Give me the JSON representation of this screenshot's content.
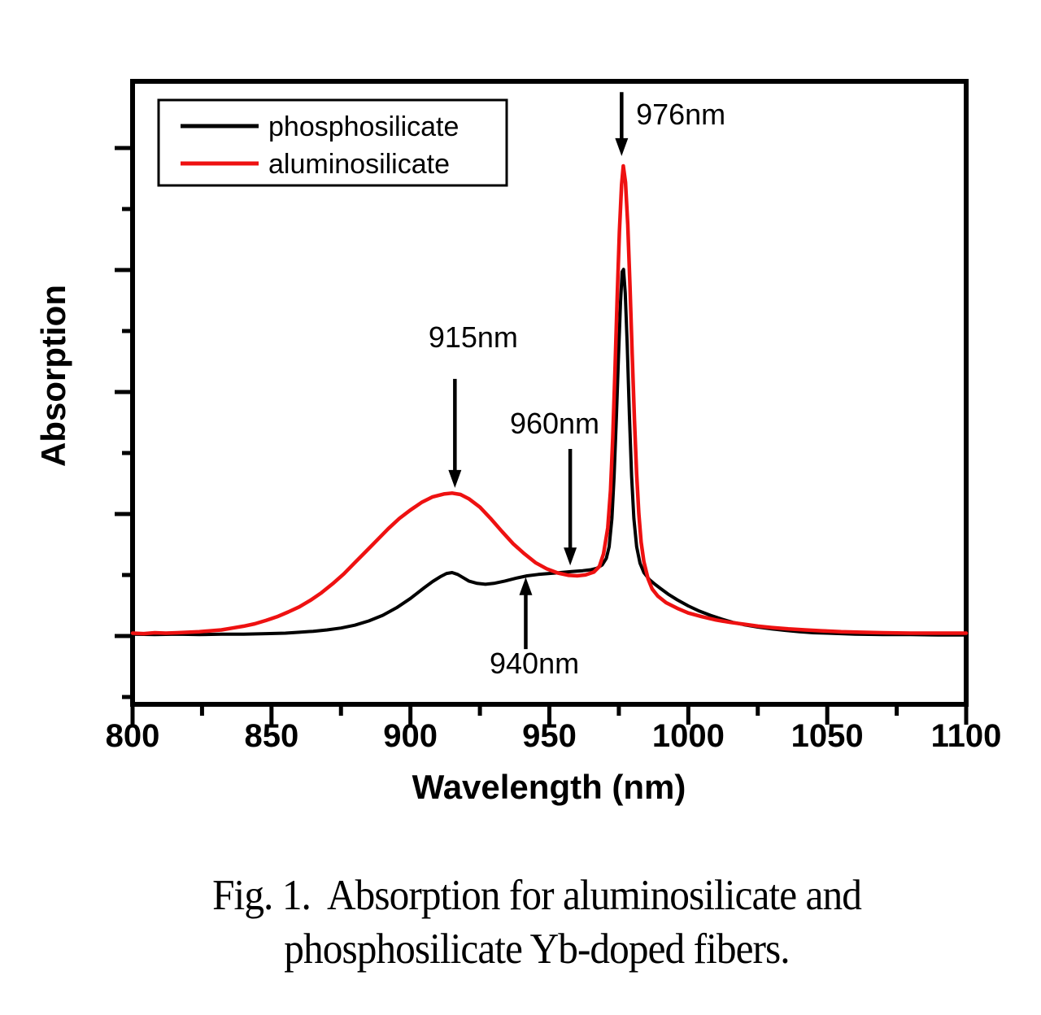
{
  "figure": {
    "caption_line1": "Fig. 1.  Absorption for aluminosilicate and",
    "caption_line2": "phosphosilicate Yb-doped fibers."
  },
  "chart_data": {
    "type": "line",
    "title": "",
    "xlabel": "Wavelength (nm)",
    "ylabel": "Absorption",
    "xlim": [
      800,
      1100
    ],
    "x_major_ticks": [
      800,
      850,
      900,
      950,
      1000,
      1050,
      1100
    ],
    "x_minor_ticks": [
      825,
      875,
      925,
      975,
      1025,
      1075
    ],
    "y_axis": {
      "tick_labels_shown": false,
      "long_ticks": 5,
      "short_ticks": 5
    },
    "ylim_au": [
      -0.13,
      1.17
    ],
    "grid": false,
    "units_note": "absorption in arbitrary units, aluminosilicate 976nm peak = 1.0",
    "legend": {
      "position": "top-left",
      "entries": [
        {
          "label": "phosphosilicate",
          "color": "#000000"
        },
        {
          "label": "aluminosilicate",
          "color": "#ee1111"
        }
      ]
    },
    "series": [
      {
        "name": "phosphosilicate",
        "color": "#000000",
        "width": 4,
        "points": [
          [
            800,
            0.004
          ],
          [
            808,
            0.003
          ],
          [
            816,
            0.004
          ],
          [
            824,
            0.003
          ],
          [
            832,
            0.004
          ],
          [
            840,
            0.004
          ],
          [
            848,
            0.005
          ],
          [
            855,
            0.006
          ],
          [
            860,
            0.008
          ],
          [
            865,
            0.01
          ],
          [
            870,
            0.013
          ],
          [
            875,
            0.017
          ],
          [
            880,
            0.023
          ],
          [
            885,
            0.032
          ],
          [
            890,
            0.044
          ],
          [
            895,
            0.06
          ],
          [
            900,
            0.08
          ],
          [
            905,
            0.103
          ],
          [
            908,
            0.116
          ],
          [
            911,
            0.127
          ],
          [
            913,
            0.133
          ],
          [
            915,
            0.135
          ],
          [
            917,
            0.131
          ],
          [
            919,
            0.124
          ],
          [
            921,
            0.117
          ],
          [
            924,
            0.112
          ],
          [
            927,
            0.11
          ],
          [
            930,
            0.112
          ],
          [
            934,
            0.117
          ],
          [
            938,
            0.123
          ],
          [
            942,
            0.128
          ],
          [
            946,
            0.131
          ],
          [
            950,
            0.133
          ],
          [
            954,
            0.135
          ],
          [
            958,
            0.137
          ],
          [
            962,
            0.139
          ],
          [
            965,
            0.141
          ],
          [
            967,
            0.144
          ],
          [
            969,
            0.151
          ],
          [
            970.5,
            0.165
          ],
          [
            971.5,
            0.19
          ],
          [
            972.5,
            0.25
          ],
          [
            973.3,
            0.34
          ],
          [
            974.1,
            0.46
          ],
          [
            974.9,
            0.6
          ],
          [
            975.6,
            0.71
          ],
          [
            976.2,
            0.775
          ],
          [
            976.7,
            0.78
          ],
          [
            977.3,
            0.73
          ],
          [
            978,
            0.62
          ],
          [
            978.8,
            0.47
          ],
          [
            979.6,
            0.34
          ],
          [
            980.4,
            0.25
          ],
          [
            981.4,
            0.19
          ],
          [
            982.6,
            0.155
          ],
          [
            984,
            0.135
          ],
          [
            986,
            0.12
          ],
          [
            988,
            0.11
          ],
          [
            990,
            0.101
          ],
          [
            993,
            0.088
          ],
          [
            996,
            0.077
          ],
          [
            1000,
            0.064
          ],
          [
            1004,
            0.053
          ],
          [
            1008,
            0.044
          ],
          [
            1012,
            0.036
          ],
          [
            1016,
            0.029
          ],
          [
            1020,
            0.024
          ],
          [
            1025,
            0.019
          ],
          [
            1030,
            0.015
          ],
          [
            1035,
            0.012
          ],
          [
            1040,
            0.009
          ],
          [
            1045,
            0.007
          ],
          [
            1050,
            0.006
          ],
          [
            1060,
            0.004
          ],
          [
            1070,
            0.003
          ],
          [
            1080,
            0.003
          ],
          [
            1090,
            0.002
          ],
          [
            1100,
            0.002
          ]
        ]
      },
      {
        "name": "aluminosilicate",
        "color": "#ee1111",
        "width": 4.5,
        "points": [
          [
            800,
            0.006
          ],
          [
            804,
            0.005
          ],
          [
            808,
            0.007
          ],
          [
            812,
            0.006
          ],
          [
            816,
            0.007
          ],
          [
            820,
            0.008
          ],
          [
            824,
            0.009
          ],
          [
            828,
            0.011
          ],
          [
            832,
            0.013
          ],
          [
            836,
            0.017
          ],
          [
            840,
            0.021
          ],
          [
            844,
            0.026
          ],
          [
            848,
            0.033
          ],
          [
            852,
            0.041
          ],
          [
            856,
            0.051
          ],
          [
            860,
            0.062
          ],
          [
            864,
            0.076
          ],
          [
            868,
            0.092
          ],
          [
            872,
            0.111
          ],
          [
            876,
            0.132
          ],
          [
            880,
            0.156
          ],
          [
            884,
            0.18
          ],
          [
            888,
            0.204
          ],
          [
            892,
            0.228
          ],
          [
            896,
            0.25
          ],
          [
            900,
            0.268
          ],
          [
            904,
            0.284
          ],
          [
            908,
            0.296
          ],
          [
            912,
            0.302
          ],
          [
            915,
            0.304
          ],
          [
            918,
            0.301
          ],
          [
            921,
            0.292
          ],
          [
            925,
            0.274
          ],
          [
            929,
            0.249
          ],
          [
            933,
            0.222
          ],
          [
            937,
            0.196
          ],
          [
            941,
            0.175
          ],
          [
            945,
            0.156
          ],
          [
            949,
            0.143
          ],
          [
            953,
            0.134
          ],
          [
            957,
            0.129
          ],
          [
            960,
            0.128
          ],
          [
            963,
            0.13
          ],
          [
            966,
            0.136
          ],
          [
            968,
            0.148
          ],
          [
            969.5,
            0.175
          ],
          [
            971,
            0.23
          ],
          [
            972,
            0.31
          ],
          [
            972.8,
            0.42
          ],
          [
            973.6,
            0.56
          ],
          [
            974.4,
            0.72
          ],
          [
            975.2,
            0.86
          ],
          [
            976,
            0.96
          ],
          [
            976.6,
            1.0
          ],
          [
            977.4,
            0.965
          ],
          [
            978.2,
            0.875
          ],
          [
            979,
            0.745
          ],
          [
            979.8,
            0.6
          ],
          [
            980.6,
            0.46
          ],
          [
            981.4,
            0.345
          ],
          [
            982.2,
            0.26
          ],
          [
            983,
            0.2
          ],
          [
            984,
            0.158
          ],
          [
            985.5,
            0.122
          ],
          [
            987,
            0.1
          ],
          [
            989,
            0.085
          ],
          [
            992,
            0.071
          ],
          [
            996,
            0.059
          ],
          [
            1000,
            0.049
          ],
          [
            1005,
            0.041
          ],
          [
            1010,
            0.034
          ],
          [
            1015,
            0.029
          ],
          [
            1020,
            0.025
          ],
          [
            1025,
            0.021
          ],
          [
            1030,
            0.018
          ],
          [
            1036,
            0.015
          ],
          [
            1042,
            0.013
          ],
          [
            1048,
            0.011
          ],
          [
            1055,
            0.009
          ],
          [
            1062,
            0.008
          ],
          [
            1070,
            0.007
          ],
          [
            1080,
            0.006
          ],
          [
            1090,
            0.006
          ],
          [
            1100,
            0.006
          ]
        ]
      }
    ],
    "annotations": [
      {
        "label": "976nm",
        "arrow": {
          "x_nm": 976,
          "from_au": 1.157,
          "to_au": 1.021,
          "direction": "down"
        },
        "text": {
          "x_nm": 981.2,
          "y_au": 1.111,
          "anchor": "start"
        }
      },
      {
        "label": "915nm",
        "arrow": {
          "x_nm": 916,
          "from_au": 0.547,
          "to_au": 0.315,
          "direction": "down"
        },
        "text": {
          "x_nm": 922.6,
          "y_au": 0.637,
          "anchor": "middle"
        }
      },
      {
        "label": "960nm",
        "arrow": {
          "x_nm": 957.5,
          "from_au": 0.398,
          "to_au": 0.15,
          "direction": "down"
        },
        "text": {
          "x_nm": 951.9,
          "y_au": 0.453,
          "anchor": "middle"
        }
      },
      {
        "label": "940nm",
        "arrow": {
          "x_nm": 941.5,
          "from_au": -0.028,
          "to_au": 0.125,
          "direction": "up"
        },
        "text": {
          "x_nm": 944.6,
          "y_au": -0.057,
          "anchor": "middle"
        }
      }
    ]
  }
}
